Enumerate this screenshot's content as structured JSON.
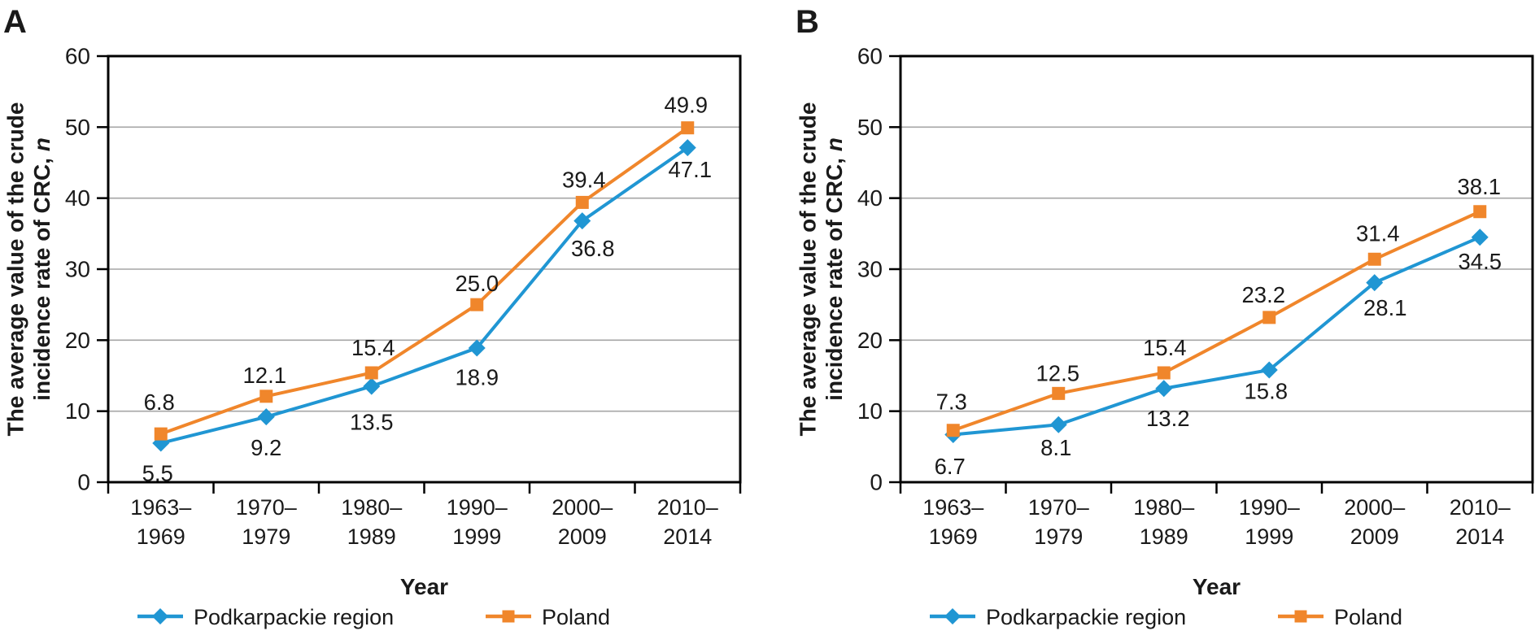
{
  "figure_name": "CRC crude incidence rate line charts",
  "colors": {
    "podkarpackie_blue": "#2096d3",
    "poland_orange": "#f0862b",
    "gridline_gray": "#a6a6a6",
    "axis_black": "#000000",
    "text_black": "#1a1a1a"
  },
  "chart_data": [
    {
      "type": "line",
      "panel_label": "A",
      "title": "",
      "xlabel": "Year",
      "ylabel": "The average value of the crude incidence rate of CRC, n",
      "ylabel_lines": [
        "The average value of the crude",
        "incidence rate of CRC, "
      ],
      "ylabel_italic": "n",
      "ylim": [
        0,
        60
      ],
      "ytick_step": 10,
      "grid": true,
      "legend_position": "bottom",
      "data_label_decimals": 1,
      "categories": [
        "1963–1969",
        "1970–1979",
        "1980–1989",
        "1990–1999",
        "2000–2009",
        "2010–2014"
      ],
      "categories_two_line": [
        [
          "1963–",
          "1969"
        ],
        [
          "1970–",
          "1979"
        ],
        [
          "1980–",
          "1989"
        ],
        [
          "1990–",
          "1999"
        ],
        [
          "2000–",
          "2009"
        ],
        [
          "2010–",
          "2014"
        ]
      ],
      "series": [
        {
          "name": "Podkarpackie region",
          "marker": "diamond",
          "color": "#2096d3",
          "values": [
            5.5,
            9.2,
            13.5,
            18.9,
            36.8,
            47.1
          ],
          "data_label_offsets": [
            [
              -4,
              37
            ],
            [
              0,
              38
            ],
            [
              0,
              44
            ],
            [
              0,
              36
            ],
            [
              13,
              34
            ],
            [
              3,
              27
            ]
          ]
        },
        {
          "name": "Poland",
          "marker": "square",
          "color": "#f0862b",
          "values": [
            6.8,
            12.1,
            15.4,
            25.0,
            39.4,
            49.9
          ],
          "data_label_offsets": [
            [
              -2,
              -39
            ],
            [
              -2,
              -26
            ],
            [
              2,
              -31
            ],
            [
              0,
              -26
            ],
            [
              2,
              -28
            ],
            [
              -2,
              -28
            ]
          ]
        }
      ]
    },
    {
      "type": "line",
      "panel_label": "B",
      "title": "",
      "xlabel": "Year",
      "ylabel": "The average value of the crude incidence rate of CRC, n",
      "ylabel_lines": [
        "The average value of the crude",
        "incidence rate of CRC, "
      ],
      "ylabel_italic": "n",
      "ylim": [
        0,
        60
      ],
      "ytick_step": 10,
      "grid": true,
      "legend_position": "bottom",
      "data_label_decimals": 1,
      "categories": [
        "1963–1969",
        "1970–1979",
        "1980–1989",
        "1990–1999",
        "2000–2009",
        "2010–2014"
      ],
      "categories_two_line": [
        [
          "1963–",
          "1969"
        ],
        [
          "1970–",
          "1979"
        ],
        [
          "1980–",
          "1989"
        ],
        [
          "1990–",
          "1999"
        ],
        [
          "2000–",
          "2009"
        ],
        [
          "2010–",
          "2014"
        ]
      ],
      "series": [
        {
          "name": "Podkarpackie region",
          "marker": "diamond",
          "color": "#2096d3",
          "values": [
            6.7,
            8.1,
            13.2,
            15.8,
            28.1,
            34.5
          ],
          "data_label_offsets": [
            [
              -4,
              39
            ],
            [
              -3,
              28
            ],
            [
              5,
              37
            ],
            [
              -4,
              26
            ],
            [
              13,
              31
            ],
            [
              0,
              30
            ]
          ]
        },
        {
          "name": "Poland",
          "marker": "square",
          "color": "#f0862b",
          "values": [
            7.3,
            12.5,
            15.4,
            23.2,
            31.4,
            38.1
          ],
          "data_label_offsets": [
            [
              -2,
              -35
            ],
            [
              -1,
              -25
            ],
            [
              1,
              -31
            ],
            [
              -7,
              -28
            ],
            [
              4,
              -32
            ],
            [
              -1,
              -31
            ]
          ]
        }
      ]
    }
  ]
}
